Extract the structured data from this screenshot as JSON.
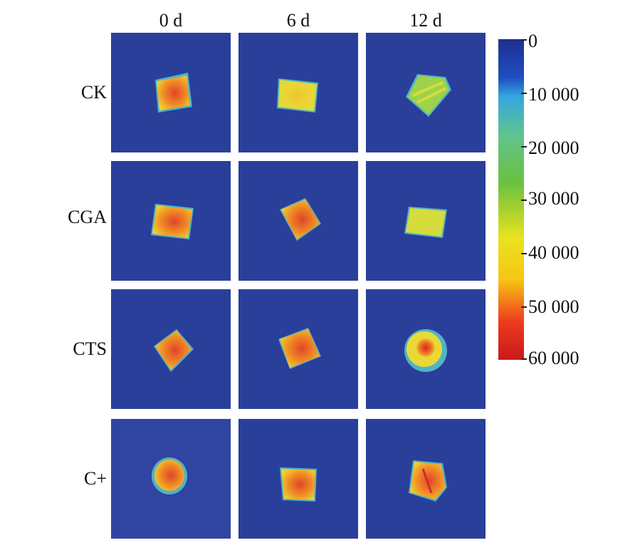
{
  "columns": [
    "0 d",
    "6 d",
    "12 d"
  ],
  "rows": [
    "CK",
    "CGA",
    "CTS",
    "C+"
  ],
  "colorbar": {
    "ticks": [
      "0",
      "10 000",
      "20 000",
      "30 000",
      "40 000",
      "50 000",
      "60 000"
    ],
    "min": 0,
    "max": 60000,
    "colors": [
      "#1f2f8f",
      "#1f4ec2",
      "#36a6de",
      "#5fc48e",
      "#6cc13f",
      "#e9e31f",
      "#f7c514",
      "#ef3b1e",
      "#c8191c"
    ]
  },
  "colors": {
    "background": "#2a3f9a",
    "sample_yellow": "#e6d83a",
    "sample_red": "#e0452a",
    "sample_green": "#8fd04a",
    "rim_cyan": "#47b6c9"
  }
}
